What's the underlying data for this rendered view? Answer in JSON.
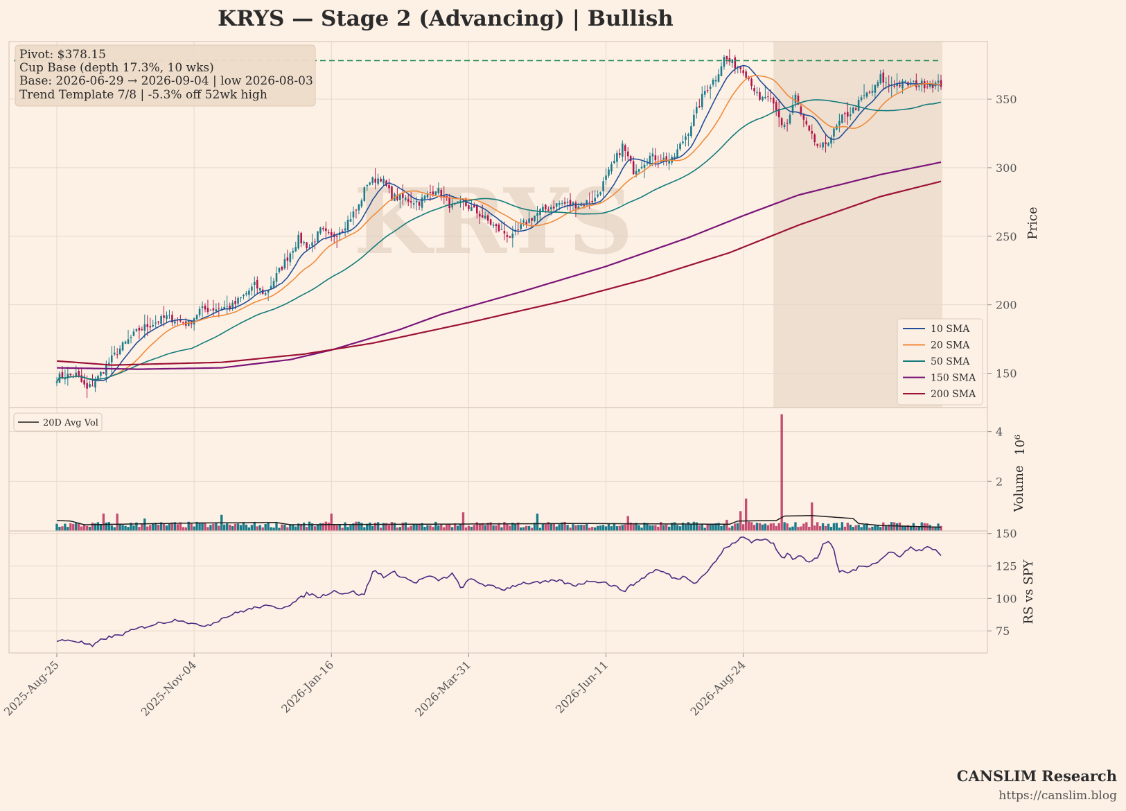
{
  "title": "KRYS  —  Stage 2 (Advancing)  |  Bullish",
  "watermark": "KRYS",
  "annotation": [
    "Pivot: $378.15",
    "Cup Base  (depth 17.3%, 10 wks)",
    "Base: 2026-06-29 → 2026-09-04  |  low 2026-08-03",
    "Trend Template 7/8  |  -5.3% off 52wk high"
  ],
  "footer": {
    "brand": "CANSLIM Research",
    "url": "https://canslim.blog"
  },
  "colors": {
    "background": "#fdf1e6",
    "up_candle": "#1a7a8a",
    "down_candle": "#b0154a",
    "pivot_line": "#1f8a4c",
    "base_shade": "#ead8c8",
    "sma10": "#1f4e96",
    "sma20": "#f08a3a",
    "sma50": "#117a7a",
    "sma150": "#7a1478",
    "sma200": "#9c1236",
    "avg_vol": "#1c1c1c",
    "rs_line": "#4a2a80"
  },
  "chart_data": {
    "type": "candlestick",
    "x_tick_labels": [
      "2025-Aug-25",
      "2025-Nov-04",
      "2026-Jan-16",
      "2026-Mar-31",
      "2026-Jun-11",
      "2026-Aug-24"
    ],
    "x_range_trading_days": [
      0,
      261
    ],
    "pivot": 378.15,
    "base": {
      "start": "2026-06-29",
      "end": "2026-09-04",
      "low_date": "2026-08-03",
      "pattern": "Cup Base",
      "depth_pct": 17.3,
      "weeks": 10
    },
    "price_panel": {
      "ylabel": "Price",
      "ylim": [
        125,
        392
      ],
      "yticks": [
        150,
        200,
        250,
        300,
        350
      ],
      "grid": true,
      "legend_location": "lower right",
      "price_anchors": [
        [
          0,
          147
        ],
        [
          7,
          149
        ],
        [
          11,
          138
        ],
        [
          15,
          147
        ],
        [
          22,
          166
        ],
        [
          30,
          182
        ],
        [
          40,
          191
        ],
        [
          48,
          186
        ],
        [
          52,
          196
        ],
        [
          64,
          199
        ],
        [
          72,
          214
        ],
        [
          76,
          208
        ],
        [
          82,
          228
        ],
        [
          88,
          248
        ],
        [
          92,
          242
        ],
        [
          96,
          254
        ],
        [
          100,
          249
        ],
        [
          104,
          256
        ],
        [
          110,
          272
        ],
        [
          113,
          289
        ],
        [
          118,
          293
        ],
        [
          122,
          279
        ],
        [
          132,
          275
        ],
        [
          138,
          285
        ],
        [
          144,
          271
        ],
        [
          148,
          274
        ],
        [
          154,
          266
        ],
        [
          160,
          256
        ],
        [
          166,
          249
        ],
        [
          170,
          259
        ],
        [
          176,
          268
        ],
        [
          183,
          274
        ],
        [
          190,
          273
        ],
        [
          196,
          277
        ],
        [
          202,
          300
        ],
        [
          206,
          316
        ],
        [
          210,
          298
        ],
        [
          216,
          308
        ],
        [
          224,
          305
        ],
        [
          230,
          327
        ],
        [
          236,
          356
        ],
        [
          240,
          366
        ],
        [
          243,
          380
        ],
        [
          246,
          376
        ],
        [
          250,
          372
        ],
        [
          253,
          362
        ],
        [
          256,
          348
        ],
        [
          258,
          352
        ],
        [
          261,
          345
        ],
        [
          264,
          332
        ],
        [
          266,
          332
        ],
        [
          269,
          352
        ],
        [
          271,
          338
        ],
        [
          274,
          325
        ],
        [
          278,
          313
        ],
        [
          282,
          323
        ],
        [
          286,
          336
        ],
        [
          290,
          342
        ],
        [
          294,
          352
        ],
        [
          298,
          358
        ],
        [
          300,
          366
        ],
        [
          302,
          361
        ]
      ],
      "sma": [
        {
          "name": "10 SMA",
          "window": 10
        },
        {
          "name": "20 SMA",
          "window": 20
        },
        {
          "name": "50 SMA",
          "window": 50
        },
        {
          "name": "150 SMA",
          "points": [
            [
              0,
              154
            ],
            [
              30,
              153
            ],
            [
              60,
              154
            ],
            [
              85,
              160
            ],
            [
              100,
              167
            ],
            [
              125,
              182
            ],
            [
              140,
              193
            ],
            [
              170,
              210
            ],
            [
              200,
              228
            ],
            [
              230,
              249
            ],
            [
              250,
              265
            ],
            [
              270,
              280
            ],
            [
              300,
              295
            ],
            [
              322,
              304
            ]
          ]
        },
        {
          "name": "200 SMA",
          "points": [
            [
              0,
              159
            ],
            [
              20,
              156
            ],
            [
              60,
              158
            ],
            [
              90,
              164
            ],
            [
              115,
              172
            ],
            [
              150,
              187
            ],
            [
              185,
              203
            ],
            [
              215,
              219
            ],
            [
              245,
              238
            ],
            [
              270,
              258
            ],
            [
              300,
              279
            ],
            [
              322,
              290
            ]
          ]
        }
      ]
    },
    "volume_panel": {
      "ylabel": "Volume",
      "scale_label": "10^6",
      "yticks": [
        2,
        4
      ],
      "ylim": [
        0,
        4.8
      ],
      "legend": "20D Avg Vol",
      "typical_volume_millions": 0.25,
      "spikes_millions": [
        [
          17,
          0.7
        ],
        [
          22,
          0.7
        ],
        [
          32,
          0.5
        ],
        [
          60,
          0.65
        ],
        [
          100,
          0.7
        ],
        [
          148,
          0.75
        ],
        [
          175,
          0.7
        ],
        [
          208,
          0.6
        ],
        [
          244,
          0.45
        ],
        [
          249,
          0.8
        ],
        [
          251,
          1.3
        ],
        [
          264,
          4.7
        ],
        [
          275,
          1.15
        ]
      ],
      "avg_vol_points": [
        [
          0,
          0.42
        ],
        [
          5,
          0.4
        ],
        [
          10,
          0.25
        ],
        [
          50,
          0.32
        ],
        [
          80,
          0.34
        ],
        [
          85,
          0.25
        ],
        [
          150,
          0.28
        ],
        [
          190,
          0.3
        ],
        [
          245,
          0.27
        ],
        [
          248,
          0.4
        ],
        [
          262,
          0.42
        ],
        [
          265,
          0.6
        ],
        [
          275,
          0.62
        ],
        [
          290,
          0.5
        ],
        [
          292,
          0.3
        ],
        [
          300,
          0.22
        ],
        [
          322,
          0.15
        ]
      ]
    },
    "rs_panel": {
      "ylabel": "RS vs SPY",
      "ylim": [
        58,
        152
      ],
      "yticks": [
        75,
        100,
        125,
        150
      ],
      "points": [
        [
          0,
          67
        ],
        [
          5,
          68
        ],
        [
          10,
          66
        ],
        [
          14,
          63
        ],
        [
          18,
          69
        ],
        [
          25,
          72
        ],
        [
          32,
          77
        ],
        [
          40,
          81
        ],
        [
          48,
          84
        ],
        [
          55,
          79
        ],
        [
          60,
          80
        ],
        [
          65,
          85
        ],
        [
          72,
          90
        ],
        [
          80,
          94
        ],
        [
          88,
          93
        ],
        [
          93,
          97
        ],
        [
          98,
          104
        ],
        [
          103,
          101
        ],
        [
          108,
          106
        ],
        [
          112,
          104
        ],
        [
          116,
          105
        ],
        [
          120,
          102
        ],
        [
          124,
          122
        ],
        [
          128,
          117
        ],
        [
          132,
          120
        ],
        [
          136,
          116
        ],
        [
          140,
          112
        ],
        [
          145,
          117
        ],
        [
          150,
          114
        ],
        [
          155,
          119
        ],
        [
          158,
          108
        ],
        [
          162,
          115
        ],
        [
          168,
          110
        ],
        [
          175,
          107
        ],
        [
          182,
          112
        ],
        [
          190,
          112
        ],
        [
          196,
          114
        ],
        [
          202,
          110
        ],
        [
          210,
          114
        ],
        [
          215,
          112
        ],
        [
          222,
          106
        ],
        [
          228,
          114
        ],
        [
          234,
          122
        ],
        [
          238,
          120
        ],
        [
          242,
          115
        ],
        [
          246,
          117
        ],
        [
          250,
          112
        ],
        [
          256,
          124
        ],
        [
          262,
          140
        ],
        [
          266,
          143
        ],
        [
          268,
          148
        ],
        [
          272,
          144
        ],
        [
          276,
          146
        ],
        [
          280,
          143
        ],
        [
          284,
          130
        ],
        [
          286,
          136
        ],
        [
          288,
          131
        ],
        [
          291,
          134
        ],
        [
          294,
          127
        ],
        [
          298,
          132
        ],
        [
          300,
          143
        ],
        [
          302,
          144
        ],
        [
          304,
          137
        ],
        [
          306,
          121
        ],
        [
          310,
          120
        ],
        [
          314,
          124
        ],
        [
          318,
          126
        ],
        [
          322,
          129
        ],
        [
          326,
          136
        ],
        [
          330,
          133
        ],
        [
          334,
          139
        ],
        [
          338,
          137
        ],
        [
          342,
          140
        ],
        [
          346,
          133
        ]
      ]
    }
  }
}
